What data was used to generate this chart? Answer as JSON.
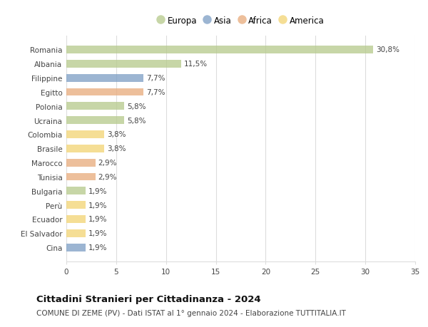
{
  "countries": [
    "Romania",
    "Albania",
    "Filippine",
    "Egitto",
    "Polonia",
    "Ucraina",
    "Colombia",
    "Brasile",
    "Marocco",
    "Tunisia",
    "Bulgaria",
    "Perù",
    "Ecuador",
    "El Salvador",
    "Cina"
  ],
  "values": [
    30.8,
    11.5,
    7.7,
    7.7,
    5.8,
    5.8,
    3.8,
    3.8,
    2.9,
    2.9,
    1.9,
    1.9,
    1.9,
    1.9,
    1.9
  ],
  "labels": [
    "30,8%",
    "11,5%",
    "7,7%",
    "7,7%",
    "5,8%",
    "5,8%",
    "3,8%",
    "3,8%",
    "2,9%",
    "2,9%",
    "1,9%",
    "1,9%",
    "1,9%",
    "1,9%",
    "1,9%"
  ],
  "continents": [
    "Europa",
    "Europa",
    "Asia",
    "Africa",
    "Europa",
    "Europa",
    "America",
    "America",
    "Africa",
    "Africa",
    "Europa",
    "America",
    "America",
    "America",
    "Asia"
  ],
  "colors": {
    "Europa": "#b5c98a",
    "Asia": "#7b9dc4",
    "Africa": "#e8aa7a",
    "America": "#f2d472"
  },
  "xlim": [
    0,
    35
  ],
  "xticks": [
    0,
    5,
    10,
    15,
    20,
    25,
    30,
    35
  ],
  "title": "Cittadini Stranieri per Cittadinanza - 2024",
  "subtitle": "COMUNE DI ZEME (PV) - Dati ISTAT al 1° gennaio 2024 - Elaborazione TUTTITALIA.IT",
  "background_color": "#ffffff",
  "plot_bg_color": "#ffffff",
  "grid_color": "#dddddd",
  "bar_height": 0.55,
  "label_fontsize": 7.5,
  "tick_fontsize": 7.5,
  "title_fontsize": 9.5,
  "subtitle_fontsize": 7.5,
  "legend_labels": [
    "Europa",
    "Asia",
    "Africa",
    "America"
  ]
}
